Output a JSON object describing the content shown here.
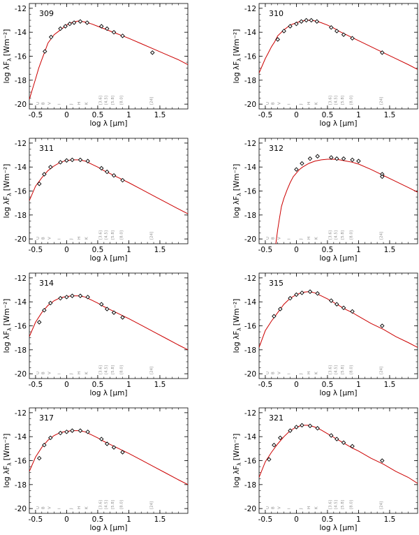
{
  "figure": {
    "xlabel": "log λ [μm]",
    "ylabel": "log λF",
    "ylabel_sub": "λ",
    "ylabel_unit": "[Wm⁻²]",
    "xlim": [
      -0.6,
      1.95
    ],
    "ylim": [
      -20.4,
      -11.6
    ],
    "xticks": [
      -0.5,
      0,
      0.5,
      1,
      1.5
    ],
    "xtick_labels": [
      "-0.5",
      "0",
      "0.5",
      "1",
      "1.5"
    ],
    "yticks": [
      -12,
      -14,
      -16,
      -18,
      -20
    ],
    "ytick_labels": [
      "-12",
      "-14",
      "-16",
      "-18",
      "-20"
    ],
    "colors": {
      "model": "#cc0000",
      "bands": "#8a8a8a",
      "axes": "#000000"
    }
  },
  "bands": [
    {
      "label": "U",
      "x": -0.44
    },
    {
      "label": "B",
      "x": -0.36
    },
    {
      "label": "V",
      "x": -0.26
    },
    {
      "label": "I",
      "x": -0.1
    },
    {
      "label": "J",
      "x": 0.09
    },
    {
      "label": "H",
      "x": 0.22
    },
    {
      "label": "K",
      "x": 0.34
    },
    {
      "label": "[3.6]",
      "x": 0.56
    },
    {
      "label": "[4.5]",
      "x": 0.65
    },
    {
      "label": "[5.8]",
      "x": 0.76
    },
    {
      "label": "[8.0]",
      "x": 0.9
    },
    {
      "label": "[24]",
      "x": 1.38
    }
  ],
  "chart_data": [
    {
      "type": "line",
      "id": "309",
      "model": {
        "x": [
          -0.6,
          -0.5,
          -0.45,
          -0.4,
          -0.35,
          -0.3,
          -0.2,
          -0.1,
          0,
          0.1,
          0.2,
          0.3,
          0.4,
          0.5,
          0.6,
          0.7,
          0.8,
          0.9,
          1.0,
          1.2,
          1.4,
          1.6,
          1.8,
          1.95
        ],
        "y": [
          -19.6,
          -17.9,
          -17.0,
          -16.3,
          -15.6,
          -14.9,
          -14.2,
          -13.8,
          -13.4,
          -13.15,
          -13.05,
          -13.15,
          -13.3,
          -13.5,
          -13.7,
          -13.9,
          -14.1,
          -14.3,
          -14.5,
          -14.95,
          -15.4,
          -15.85,
          -16.3,
          -16.7
        ]
      },
      "points": {
        "x": [
          -0.35,
          -0.25,
          -0.1,
          -0.02,
          0.05,
          0.12,
          0.22,
          0.33,
          0.56,
          0.65,
          0.76,
          0.9,
          1.38
        ],
        "y": [
          -15.6,
          -14.4,
          -13.7,
          -13.5,
          -13.3,
          -13.2,
          -13.1,
          -13.2,
          -13.5,
          -13.7,
          -14.0,
          -14.3,
          -15.7
        ]
      }
    },
    {
      "type": "line",
      "id": "310",
      "model": {
        "x": [
          -0.6,
          -0.5,
          -0.45,
          -0.4,
          -0.35,
          -0.3,
          -0.2,
          -0.1,
          0,
          0.1,
          0.2,
          0.3,
          0.4,
          0.5,
          0.6,
          0.7,
          0.8,
          0.9,
          1.0,
          1.2,
          1.4,
          1.6,
          1.8,
          1.95
        ],
        "y": [
          -17.4,
          -16.2,
          -15.7,
          -15.2,
          -14.8,
          -14.3,
          -13.8,
          -13.4,
          -13.2,
          -13.05,
          -13.0,
          -13.05,
          -13.2,
          -13.4,
          -13.65,
          -13.95,
          -14.2,
          -14.45,
          -14.7,
          -15.2,
          -15.7,
          -16.2,
          -16.7,
          -17.1
        ]
      },
      "points": {
        "x": [
          -0.3,
          -0.2,
          -0.1,
          0,
          0.08,
          0.16,
          0.24,
          0.33,
          0.56,
          0.65,
          0.76,
          0.9,
          1.38
        ],
        "y": [
          -14.6,
          -13.9,
          -13.5,
          -13.3,
          -13.1,
          -13.0,
          -13.0,
          -13.1,
          -13.6,
          -13.9,
          -14.2,
          -14.5,
          -15.7
        ]
      }
    },
    {
      "type": "line",
      "id": "311",
      "model": {
        "x": [
          -0.6,
          -0.5,
          -0.4,
          -0.3,
          -0.2,
          -0.1,
          0,
          0.1,
          0.2,
          0.3,
          0.4,
          0.5,
          0.6,
          0.7,
          0.8,
          0.9,
          1.0,
          1.2,
          1.4,
          1.6,
          1.8,
          1.95
        ],
        "y": [
          -16.8,
          -15.6,
          -14.9,
          -14.3,
          -13.9,
          -13.6,
          -13.45,
          -13.4,
          -13.4,
          -13.5,
          -13.75,
          -14.0,
          -14.3,
          -14.55,
          -14.8,
          -15.05,
          -15.3,
          -15.85,
          -16.4,
          -16.95,
          -17.5,
          -17.9
        ]
      },
      "points": {
        "x": [
          -0.44,
          -0.36,
          -0.26,
          -0.1,
          0,
          0.09,
          0.22,
          0.34,
          0.56,
          0.65,
          0.76,
          0.9
        ],
        "y": [
          -15.4,
          -14.6,
          -14.0,
          -13.6,
          -13.45,
          -13.4,
          -13.4,
          -13.5,
          -14.1,
          -14.4,
          -14.7,
          -15.1
        ]
      }
    },
    {
      "type": "line",
      "id": "312",
      "model": {
        "x": [
          -0.33,
          -0.3,
          -0.27,
          -0.24,
          -0.2,
          -0.15,
          -0.1,
          -0.05,
          0,
          0.05,
          0.1,
          0.2,
          0.3,
          0.4,
          0.5,
          0.6,
          0.7,
          0.8,
          0.9,
          1.0,
          1.2,
          1.4,
          1.6,
          1.8,
          1.95
        ],
        "y": [
          -20.4,
          -19.2,
          -18.2,
          -17.3,
          -16.6,
          -15.9,
          -15.3,
          -14.8,
          -14.5,
          -14.2,
          -14.0,
          -13.7,
          -13.5,
          -13.4,
          -13.35,
          -13.35,
          -13.4,
          -13.5,
          -13.6,
          -13.75,
          -14.2,
          -14.7,
          -15.2,
          -15.7,
          -16.1
        ]
      },
      "points": {
        "x": [
          0,
          0.09,
          0.22,
          0.34,
          0.56,
          0.65,
          0.76,
          0.9,
          1.0,
          1.38,
          1.38
        ],
        "y": [
          -14.2,
          -13.7,
          -13.3,
          -13.1,
          -13.2,
          -13.3,
          -13.3,
          -13.4,
          -13.5,
          -14.6,
          -14.8
        ]
      }
    },
    {
      "type": "line",
      "id": "314",
      "model": {
        "x": [
          -0.6,
          -0.5,
          -0.4,
          -0.3,
          -0.2,
          -0.1,
          0,
          0.1,
          0.2,
          0.3,
          0.4,
          0.5,
          0.6,
          0.7,
          0.8,
          0.9,
          1.0,
          1.2,
          1.4,
          1.6,
          1.8,
          1.95
        ],
        "y": [
          -16.9,
          -15.7,
          -14.9,
          -14.3,
          -13.9,
          -13.65,
          -13.55,
          -13.5,
          -13.5,
          -13.6,
          -13.85,
          -14.1,
          -14.4,
          -14.65,
          -14.9,
          -15.15,
          -15.4,
          -15.95,
          -16.5,
          -17.05,
          -17.6,
          -18.0
        ]
      },
      "points": {
        "x": [
          -0.44,
          -0.36,
          -0.26,
          -0.1,
          0,
          0.09,
          0.22,
          0.34,
          0.56,
          0.65,
          0.76,
          0.9
        ],
        "y": [
          -15.7,
          -14.7,
          -14.1,
          -13.7,
          -13.6,
          -13.5,
          -13.5,
          -13.6,
          -14.2,
          -14.6,
          -14.9,
          -15.3
        ]
      }
    },
    {
      "type": "line",
      "id": "315",
      "model": {
        "x": [
          -0.6,
          -0.5,
          -0.4,
          -0.3,
          -0.2,
          -0.1,
          0,
          0.1,
          0.2,
          0.3,
          0.4,
          0.5,
          0.6,
          0.7,
          0.8,
          0.9,
          1.0,
          1.2,
          1.4,
          1.6,
          1.8,
          1.95
        ],
        "y": [
          -17.8,
          -16.4,
          -15.6,
          -14.9,
          -14.2,
          -13.7,
          -13.4,
          -13.2,
          -13.15,
          -13.25,
          -13.5,
          -13.75,
          -14.05,
          -14.35,
          -14.65,
          -14.9,
          -15.2,
          -15.8,
          -16.3,
          -16.9,
          -17.4,
          -17.8
        ]
      },
      "points": {
        "x": [
          -0.36,
          -0.26,
          -0.1,
          0,
          0.09,
          0.22,
          0.34,
          0.56,
          0.65,
          0.76,
          0.9,
          1.38
        ],
        "y": [
          -15.2,
          -14.6,
          -13.7,
          -13.4,
          -13.25,
          -13.15,
          -13.3,
          -13.9,
          -14.2,
          -14.5,
          -14.8,
          -16.0
        ]
      }
    },
    {
      "type": "line",
      "id": "317",
      "model": {
        "x": [
          -0.6,
          -0.5,
          -0.4,
          -0.3,
          -0.2,
          -0.1,
          0,
          0.1,
          0.2,
          0.3,
          0.4,
          0.5,
          0.6,
          0.7,
          0.8,
          0.9,
          1.0,
          1.2,
          1.4,
          1.6,
          1.8,
          1.95
        ],
        "y": [
          -16.9,
          -15.7,
          -14.9,
          -14.3,
          -13.9,
          -13.65,
          -13.55,
          -13.5,
          -13.5,
          -13.6,
          -13.85,
          -14.1,
          -14.4,
          -14.65,
          -14.9,
          -15.15,
          -15.4,
          -15.95,
          -16.5,
          -17.05,
          -17.6,
          -18.0
        ]
      },
      "points": {
        "x": [
          -0.44,
          -0.36,
          -0.26,
          -0.1,
          0,
          0.09,
          0.22,
          0.34,
          0.56,
          0.65,
          0.76,
          0.9
        ],
        "y": [
          -15.8,
          -14.7,
          -14.1,
          -13.7,
          -13.6,
          -13.5,
          -13.5,
          -13.6,
          -14.2,
          -14.6,
          -14.9,
          -15.3
        ]
      }
    },
    {
      "type": "line",
      "id": "321",
      "model": {
        "x": [
          -0.6,
          -0.5,
          -0.4,
          -0.3,
          -0.2,
          -0.1,
          0,
          0.1,
          0.2,
          0.3,
          0.4,
          0.5,
          0.6,
          0.7,
          0.8,
          0.9,
          1.0,
          1.2,
          1.4,
          1.6,
          1.8,
          1.95
        ],
        "y": [
          -17.4,
          -16.1,
          -15.3,
          -14.6,
          -14.0,
          -13.5,
          -13.2,
          -13.05,
          -13.05,
          -13.2,
          -13.45,
          -13.75,
          -14.05,
          -14.35,
          -14.65,
          -14.95,
          -15.2,
          -15.8,
          -16.3,
          -16.9,
          -17.4,
          -17.9
        ]
      },
      "points": {
        "x": [
          -0.44,
          -0.36,
          -0.26,
          -0.1,
          0,
          0.09,
          0.22,
          0.34,
          0.56,
          0.65,
          0.76,
          0.9,
          1.38
        ],
        "y": [
          -15.9,
          -14.7,
          -14.1,
          -13.5,
          -13.2,
          -13.05,
          -13.1,
          -13.3,
          -13.9,
          -14.2,
          -14.5,
          -14.8,
          -16.0
        ]
      }
    }
  ]
}
